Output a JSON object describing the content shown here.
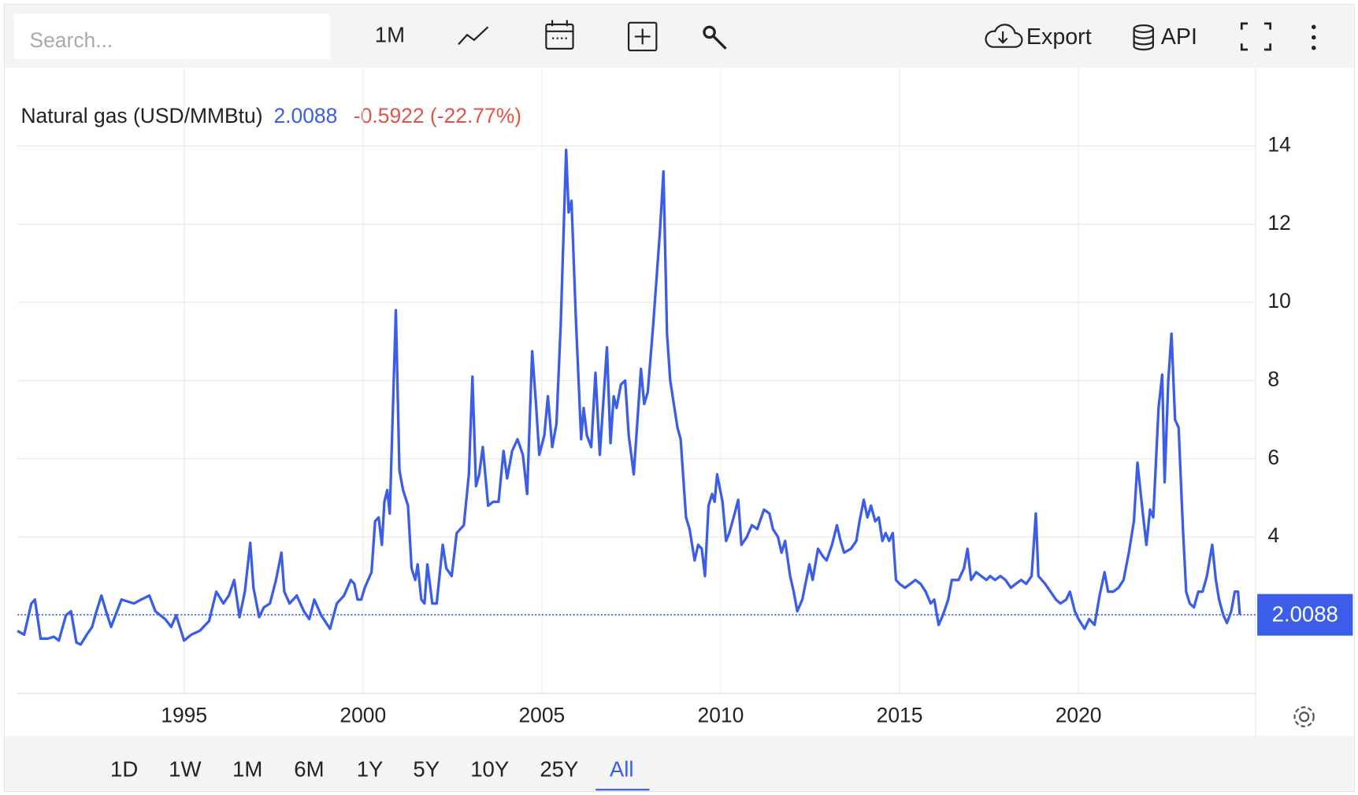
{
  "toolbar": {
    "search_placeholder": "Search...",
    "interval": "1M",
    "export": "Export",
    "api": "API"
  },
  "range_selector": {
    "options": [
      "1D",
      "1W",
      "1M",
      "6M",
      "1Y",
      "5Y",
      "10Y",
      "25Y",
      "All"
    ],
    "active_index": 8
  },
  "chart_data": {
    "type": "line",
    "title": "Natural gas (USD/MMBtu)",
    "change": "-0.5922 (-22.77%)",
    "xlim": [
      1990.34,
      2024.95
    ],
    "xticks": [
      1995,
      2000,
      2005,
      2010,
      2015,
      2020
    ],
    "ylim": [
      0,
      16
    ],
    "yticks": [
      4,
      6,
      8,
      10,
      12,
      14
    ],
    "grid": true,
    "last_value_line": true,
    "series": [
      {
        "name": "Natural gas",
        "color": "#3b5de7",
        "x": [
          1990.34,
          1990.53,
          1990.73,
          1990.83,
          1990.99,
          1991.19,
          1991.36,
          1991.5,
          1991.7,
          1991.84,
          1991.99,
          1992.11,
          1992.28,
          1992.43,
          1992.55,
          1992.69,
          1992.82,
          1992.96,
          1993.25,
          1993.6,
          1993.8,
          1994.03,
          1994.2,
          1994.47,
          1994.64,
          1994.78,
          1995.0,
          1995.2,
          1995.44,
          1995.7,
          1995.9,
          1996.1,
          1996.25,
          1996.4,
          1996.55,
          1996.7,
          1996.85,
          1996.94,
          1997.1,
          1997.23,
          1997.4,
          1997.57,
          1997.72,
          1997.8,
          1997.95,
          1998.15,
          1998.35,
          1998.5,
          1998.64,
          1998.83,
          1999.08,
          1999.27,
          1999.47,
          1999.66,
          1999.76,
          1999.85,
          1999.95,
          2000.05,
          2000.24,
          2000.34,
          2000.44,
          2000.53,
          2000.6,
          2000.68,
          2000.75,
          2000.92,
          2001.02,
          2001.12,
          2001.26,
          2001.36,
          2001.46,
          2001.53,
          2001.63,
          2001.72,
          2001.8,
          2001.94,
          2002.06,
          2002.23,
          2002.33,
          2002.48,
          2002.62,
          2002.82,
          2002.96,
          2003.06,
          2003.16,
          2003.25,
          2003.35,
          2003.5,
          2003.64,
          2003.79,
          2003.93,
          2004.03,
          2004.17,
          2004.32,
          2004.47,
          2004.59,
          2004.73,
          2004.83,
          2004.93,
          2005.07,
          2005.17,
          2005.29,
          2005.41,
          2005.53,
          2005.68,
          2005.75,
          2005.83,
          2005.95,
          2006.1,
          2006.17,
          2006.26,
          2006.38,
          2006.5,
          2006.62,
          2006.82,
          2006.92,
          2007.01,
          2007.09,
          2007.21,
          2007.33,
          2007.43,
          2007.57,
          2007.77,
          2007.86,
          2007.96,
          2008.11,
          2008.3,
          2008.4,
          2008.5,
          2008.59,
          2008.79,
          2008.88,
          2009.03,
          2009.13,
          2009.27,
          2009.37,
          2009.47,
          2009.56,
          2009.66,
          2009.76,
          2009.83,
          2009.9,
          2010.05,
          2010.15,
          2010.24,
          2010.39,
          2010.49,
          2010.58,
          2010.73,
          2010.87,
          2011.02,
          2011.21,
          2011.36,
          2011.46,
          2011.6,
          2011.7,
          2011.8,
          2011.94,
          2012.04,
          2012.14,
          2012.28,
          2012.48,
          2012.57,
          2012.72,
          2012.86,
          2012.96,
          2013.11,
          2013.25,
          2013.35,
          2013.45,
          2013.64,
          2013.79,
          2013.88,
          2014.0,
          2014.1,
          2014.2,
          2014.32,
          2014.42,
          2014.52,
          2014.61,
          2014.71,
          2014.81,
          2014.9,
          2015.0,
          2015.15,
          2015.3,
          2015.44,
          2015.59,
          2015.73,
          2015.87,
          2015.97,
          2016.09,
          2016.21,
          2016.36,
          2016.46,
          2016.65,
          2016.8,
          2016.9,
          2017.0,
          2017.14,
          2017.28,
          2017.43,
          2017.53,
          2017.67,
          2017.82,
          2017.96,
          2018.11,
          2018.25,
          2018.4,
          2018.54,
          2018.69,
          2018.81,
          2018.88,
          2019.07,
          2019.22,
          2019.37,
          2019.5,
          2019.66,
          2019.76,
          2019.9,
          2020.0,
          2020.17,
          2020.3,
          2020.45,
          2020.59,
          2020.73,
          2020.83,
          2020.97,
          2021.12,
          2021.26,
          2021.41,
          2021.55,
          2021.65,
          2021.8,
          2021.9,
          2022.0,
          2022.09,
          2022.24,
          2022.34,
          2022.41,
          2022.51,
          2022.6,
          2022.7,
          2022.8,
          2022.92,
          2023.01,
          2023.11,
          2023.23,
          2023.35,
          2023.47,
          2023.59,
          2023.74,
          2023.84,
          2023.93,
          2024.05,
          2024.15,
          2024.27,
          2024.37,
          2024.46,
          2024.51
        ],
        "values": [
          1.6,
          1.5,
          2.3,
          2.4,
          1.4,
          1.4,
          1.45,
          1.35,
          2.0,
          2.1,
          1.3,
          1.25,
          1.5,
          1.7,
          2.1,
          2.5,
          2.1,
          1.7,
          2.4,
          2.3,
          2.4,
          2.5,
          2.1,
          1.9,
          1.7,
          2.0,
          1.35,
          1.5,
          1.6,
          1.85,
          2.6,
          2.3,
          2.5,
          2.9,
          1.95,
          2.6,
          3.85,
          2.7,
          1.95,
          2.2,
          2.3,
          2.9,
          3.6,
          2.6,
          2.3,
          2.5,
          2.1,
          1.9,
          2.4,
          2.0,
          1.65,
          2.3,
          2.5,
          2.9,
          2.8,
          2.4,
          2.4,
          2.7,
          3.1,
          4.4,
          4.5,
          3.8,
          4.9,
          5.2,
          4.6,
          9.8,
          5.7,
          5.2,
          4.8,
          3.2,
          2.9,
          3.3,
          2.4,
          2.3,
          3.3,
          2.3,
          2.3,
          3.8,
          3.2,
          3.0,
          4.1,
          4.3,
          5.6,
          8.1,
          5.3,
          5.6,
          6.3,
          4.8,
          4.9,
          4.9,
          6.2,
          5.5,
          6.2,
          6.5,
          6.1,
          5.1,
          8.75,
          7.5,
          6.1,
          6.6,
          7.6,
          6.3,
          6.9,
          9.5,
          13.9,
          12.3,
          12.6,
          9.6,
          6.5,
          7.3,
          6.6,
          6.3,
          8.2,
          6.1,
          8.85,
          6.4,
          7.6,
          7.3,
          7.9,
          8.0,
          6.6,
          5.6,
          8.3,
          7.4,
          7.7,
          9.4,
          11.8,
          13.35,
          9.2,
          8.0,
          6.8,
          6.5,
          4.5,
          4.2,
          3.4,
          3.8,
          3.7,
          3.0,
          4.8,
          5.1,
          4.9,
          5.6,
          4.9,
          3.9,
          4.1,
          4.6,
          4.95,
          3.8,
          4.0,
          4.3,
          4.2,
          4.7,
          4.6,
          4.2,
          4.0,
          3.6,
          3.9,
          3.0,
          2.6,
          2.1,
          2.4,
          3.3,
          2.9,
          3.7,
          3.5,
          3.4,
          3.8,
          4.3,
          3.9,
          3.6,
          3.7,
          3.9,
          4.4,
          4.95,
          4.5,
          4.8,
          4.4,
          4.5,
          3.9,
          4.1,
          3.9,
          4.1,
          2.9,
          2.8,
          2.7,
          2.8,
          2.9,
          2.8,
          2.6,
          2.3,
          2.4,
          1.75,
          2.0,
          2.4,
          2.9,
          2.9,
          3.2,
          3.7,
          2.9,
          3.1,
          3.0,
          2.9,
          3.0,
          2.9,
          3.0,
          2.9,
          2.7,
          2.8,
          2.9,
          2.8,
          3.0,
          4.6,
          3.0,
          2.8,
          2.6,
          2.4,
          2.3,
          2.4,
          2.6,
          2.1,
          1.9,
          1.65,
          1.9,
          1.75,
          2.5,
          3.1,
          2.6,
          2.6,
          2.7,
          2.9,
          3.6,
          4.4,
          5.9,
          4.6,
          3.8,
          4.7,
          4.5,
          7.3,
          8.15,
          5.4,
          8.0,
          9.2,
          7.0,
          6.8,
          4.2,
          2.6,
          2.3,
          2.2,
          2.6,
          2.6,
          3.0,
          3.8,
          2.9,
          2.4,
          2.0,
          1.8,
          2.1,
          2.6,
          2.6,
          2.0088
        ]
      }
    ]
  }
}
